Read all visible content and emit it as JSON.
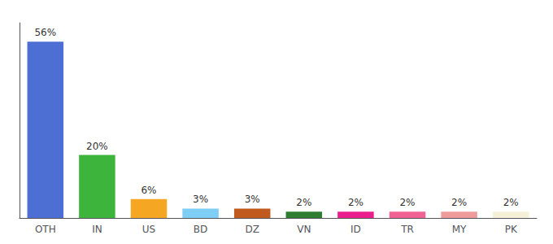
{
  "chart_data": {
    "type": "bar",
    "categories": [
      "OTH",
      "IN",
      "US",
      "BD",
      "DZ",
      "VN",
      "ID",
      "TR",
      "MY",
      "PK"
    ],
    "values": [
      56,
      20,
      6,
      3,
      3,
      2,
      2,
      2,
      2,
      2
    ],
    "value_labels": [
      "56%",
      "20%",
      "6%",
      "3%",
      "3%",
      "2%",
      "2%",
      "2%",
      "2%",
      "2%"
    ],
    "colors": [
      "#4d6fd4",
      "#3db53d",
      "#f5a623",
      "#7ecef5",
      "#c05a1f",
      "#2e7d32",
      "#e91e8c",
      "#f06292",
      "#ef9a9a",
      "#f5f0d8"
    ],
    "ylim": [
      0,
      62
    ],
    "grid": false,
    "data_labels": true,
    "tick_labels": "x"
  }
}
